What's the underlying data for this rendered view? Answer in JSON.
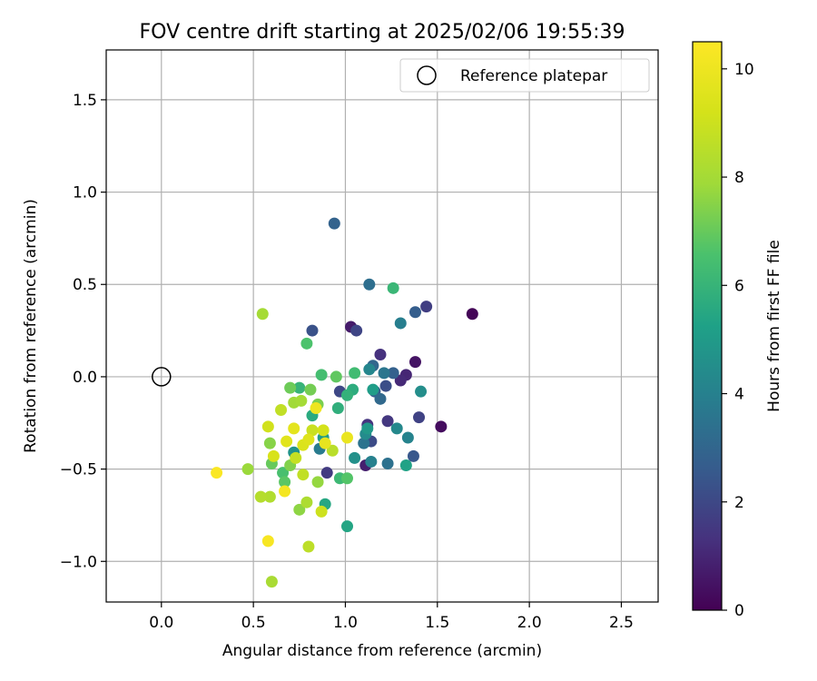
{
  "chart_data": {
    "type": "scatter",
    "title": "FOV centre drift starting at 2025/02/06 19:55:39",
    "xlabel": "Angular distance from reference (arcmin)",
    "ylabel": "Rotation from reference (arcmin)",
    "xlim": [
      -0.3,
      2.7
    ],
    "ylim": [
      -1.22,
      1.77
    ],
    "xticks": [
      0.0,
      0.5,
      1.0,
      1.5,
      2.0,
      2.5
    ],
    "yticks": [
      -1.0,
      -0.5,
      0.0,
      0.5,
      1.0,
      1.5
    ],
    "xtick_labels": [
      "0.0",
      "0.5",
      "1.0",
      "1.5",
      "2.0",
      "2.5"
    ],
    "ytick_labels": [
      "−1.0",
      "−0.5",
      "0.0",
      "0.5",
      "1.0",
      "1.5"
    ],
    "grid": true,
    "legend": {
      "position": "top-right",
      "entries": [
        {
          "label": "Reference platepar",
          "marker": "open-circle",
          "color": "#000000"
        }
      ]
    },
    "reference_point": {
      "x": 0.0,
      "y": 0.0,
      "label": "Reference platepar"
    },
    "colorbar": {
      "label": "Hours from first FF file",
      "colormap": "viridis",
      "min": 0,
      "max": 10.5,
      "ticks": [
        0,
        2,
        4,
        6,
        8,
        10
      ],
      "tick_labels": [
        "0",
        "2",
        "4",
        "6",
        "8",
        "10"
      ]
    },
    "points": [
      {
        "x": 1.69,
        "y": 0.34,
        "h": 0.1
      },
      {
        "x": 1.52,
        "y": -0.27,
        "h": 0.3
      },
      {
        "x": 1.38,
        "y": 0.08,
        "h": 0.5
      },
      {
        "x": 1.03,
        "y": 0.27,
        "h": 0.7
      },
      {
        "x": 1.11,
        "y": -0.48,
        "h": 0.8
      },
      {
        "x": 1.33,
        "y": 0.01,
        "h": 1.0
      },
      {
        "x": 1.3,
        "y": -0.02,
        "h": 1.1
      },
      {
        "x": 1.19,
        "y": 0.12,
        "h": 1.3
      },
      {
        "x": 1.12,
        "y": -0.26,
        "h": 1.4
      },
      {
        "x": 1.23,
        "y": -0.24,
        "h": 1.5
      },
      {
        "x": 0.9,
        "y": -0.52,
        "h": 1.6
      },
      {
        "x": 1.44,
        "y": 0.38,
        "h": 1.7
      },
      {
        "x": 1.4,
        "y": -0.22,
        "h": 1.8
      },
      {
        "x": 1.06,
        "y": 0.25,
        "h": 1.9
      },
      {
        "x": 0.97,
        "y": -0.08,
        "h": 2.0
      },
      {
        "x": 1.14,
        "y": -0.35,
        "h": 2.1
      },
      {
        "x": 1.22,
        "y": -0.05,
        "h": 2.2
      },
      {
        "x": 0.82,
        "y": 0.25,
        "h": 2.3
      },
      {
        "x": 1.37,
        "y": -0.43,
        "h": 2.5
      },
      {
        "x": 1.16,
        "y": -0.08,
        "h": 2.6
      },
      {
        "x": 1.38,
        "y": 0.35,
        "h": 2.7
      },
      {
        "x": 1.26,
        "y": 0.02,
        "h": 2.8
      },
      {
        "x": 0.94,
        "y": 0.83,
        "h": 2.9
      },
      {
        "x": 1.15,
        "y": 0.06,
        "h": 3.0
      },
      {
        "x": 1.19,
        "y": -0.12,
        "h": 3.1
      },
      {
        "x": 1.13,
        "y": 0.5,
        "h": 3.3
      },
      {
        "x": 1.23,
        "y": -0.47,
        "h": 3.4
      },
      {
        "x": 1.1,
        "y": -0.36,
        "h": 3.5
      },
      {
        "x": 1.21,
        "y": 0.02,
        "h": 3.6
      },
      {
        "x": 0.86,
        "y": -0.39,
        "h": 3.8
      },
      {
        "x": 1.3,
        "y": 0.29,
        "h": 3.9
      },
      {
        "x": 1.14,
        "y": -0.46,
        "h": 4.0
      },
      {
        "x": 1.34,
        "y": -0.33,
        "h": 4.1
      },
      {
        "x": 1.13,
        "y": 0.04,
        "h": 4.2
      },
      {
        "x": 1.28,
        "y": -0.28,
        "h": 4.3
      },
      {
        "x": 1.11,
        "y": -0.31,
        "h": 4.4
      },
      {
        "x": 1.41,
        "y": -0.08,
        "h": 4.5
      },
      {
        "x": 1.05,
        "y": -0.44,
        "h": 4.6
      },
      {
        "x": 0.72,
        "y": -0.41,
        "h": 4.7
      },
      {
        "x": 1.12,
        "y": -0.28,
        "h": 4.9
      },
      {
        "x": 0.88,
        "y": -0.33,
        "h": 5.0
      },
      {
        "x": 1.15,
        "y": -0.07,
        "h": 5.1
      },
      {
        "x": 1.33,
        "y": -0.48,
        "h": 5.3
      },
      {
        "x": 1.01,
        "y": -0.81,
        "h": 5.4
      },
      {
        "x": 0.89,
        "y": -0.69,
        "h": 5.5
      },
      {
        "x": 0.82,
        "y": -0.21,
        "h": 5.6
      },
      {
        "x": 1.04,
        "y": -0.07,
        "h": 5.7
      },
      {
        "x": 0.96,
        "y": -0.17,
        "h": 5.8
      },
      {
        "x": 1.01,
        "y": -0.1,
        "h": 5.9
      },
      {
        "x": 0.75,
        "y": -0.06,
        "h": 6.0
      },
      {
        "x": 1.26,
        "y": 0.48,
        "h": 6.1
      },
      {
        "x": 0.97,
        "y": -0.55,
        "h": 6.2
      },
      {
        "x": 1.05,
        "y": 0.02,
        "h": 6.3
      },
      {
        "x": 0.87,
        "y": 0.01,
        "h": 6.4
      },
      {
        "x": 0.66,
        "y": -0.52,
        "h": 6.5
      },
      {
        "x": 0.79,
        "y": 0.18,
        "h": 6.6
      },
      {
        "x": 1.01,
        "y": -0.55,
        "h": 6.7
      },
      {
        "x": 0.67,
        "y": -0.57,
        "h": 6.8
      },
      {
        "x": 0.95,
        "y": 0.0,
        "h": 6.9
      },
      {
        "x": 0.6,
        "y": -0.47,
        "h": 7.0
      },
      {
        "x": 0.7,
        "y": -0.06,
        "h": 7.1
      },
      {
        "x": 0.81,
        "y": -0.07,
        "h": 7.2
      },
      {
        "x": 0.85,
        "y": -0.15,
        "h": 7.3
      },
      {
        "x": 0.7,
        "y": -0.48,
        "h": 7.4
      },
      {
        "x": 0.59,
        "y": -0.36,
        "h": 7.5
      },
      {
        "x": 0.75,
        "y": -0.72,
        "h": 7.6
      },
      {
        "x": 0.85,
        "y": -0.57,
        "h": 7.7
      },
      {
        "x": 0.47,
        "y": -0.5,
        "h": 7.8
      },
      {
        "x": 0.72,
        "y": -0.14,
        "h": 7.9
      },
      {
        "x": 0.76,
        "y": -0.13,
        "h": 8.0
      },
      {
        "x": 0.55,
        "y": 0.34,
        "h": 8.0
      },
      {
        "x": 0.6,
        "y": -1.11,
        "h": 8.1
      },
      {
        "x": 0.79,
        "y": -0.68,
        "h": 8.2
      },
      {
        "x": 0.59,
        "y": -0.65,
        "h": 8.3
      },
      {
        "x": 0.54,
        "y": -0.65,
        "h": 8.4
      },
      {
        "x": 0.93,
        "y": -0.4,
        "h": 8.5
      },
      {
        "x": 0.8,
        "y": -0.92,
        "h": 8.6
      },
      {
        "x": 0.65,
        "y": -0.18,
        "h": 8.7
      },
      {
        "x": 0.77,
        "y": -0.53,
        "h": 8.7
      },
      {
        "x": 0.73,
        "y": -0.44,
        "h": 8.8
      },
      {
        "x": 0.82,
        "y": -0.29,
        "h": 8.9
      },
      {
        "x": 0.87,
        "y": -0.73,
        "h": 9.0
      },
      {
        "x": 0.58,
        "y": -0.27,
        "h": 9.1
      },
      {
        "x": 0.88,
        "y": -0.29,
        "h": 9.2
      },
      {
        "x": 0.61,
        "y": -0.43,
        "h": 9.3
      },
      {
        "x": 0.77,
        "y": -0.37,
        "h": 9.4
      },
      {
        "x": 0.8,
        "y": -0.34,
        "h": 9.5
      },
      {
        "x": 0.68,
        "y": -0.35,
        "h": 9.6
      },
      {
        "x": 0.72,
        "y": -0.28,
        "h": 9.7
      },
      {
        "x": 0.89,
        "y": -0.36,
        "h": 9.8
      },
      {
        "x": 1.01,
        "y": -0.33,
        "h": 9.9
      },
      {
        "x": 0.84,
        "y": -0.17,
        "h": 10.0
      },
      {
        "x": 0.67,
        "y": -0.62,
        "h": 10.2
      },
      {
        "x": 0.58,
        "y": -0.89,
        "h": 10.3
      },
      {
        "x": 0.3,
        "y": -0.52,
        "h": 10.4
      }
    ]
  }
}
